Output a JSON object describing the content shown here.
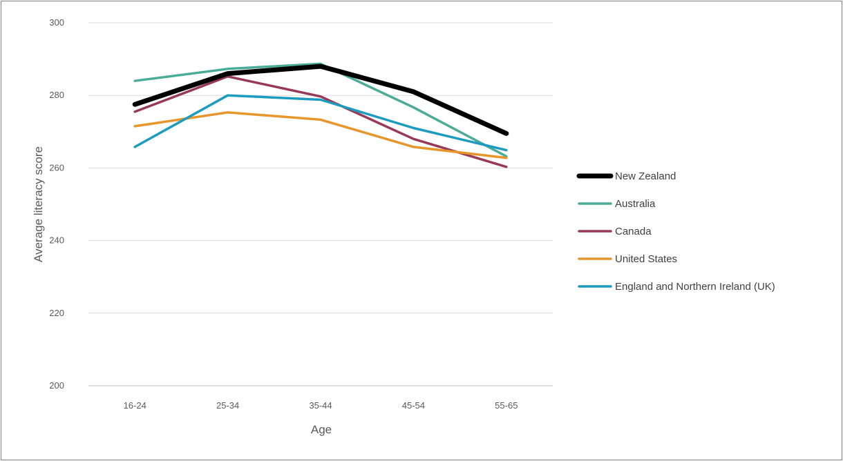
{
  "chart_data": {
    "type": "line",
    "title": "",
    "xlabel": "Age",
    "ylabel": "Average literacy score",
    "categories": [
      "16-24",
      "25-34",
      "35-44",
      "45-54",
      "55-65"
    ],
    "ylim": [
      200,
      300
    ],
    "yticks": [
      200,
      220,
      240,
      260,
      280,
      300
    ],
    "grid": true,
    "legend_position": "right",
    "series": [
      {
        "name": "New Zealand",
        "color": "#000000",
        "emphasis": true,
        "values": [
          277.5,
          286,
          288,
          281,
          269.5
        ]
      },
      {
        "name": "Australia",
        "color": "#4aac98",
        "values": [
          284,
          287.3,
          288.7,
          276.7,
          263.2
        ]
      },
      {
        "name": "Canada",
        "color": "#983a57",
        "values": [
          275.5,
          285.2,
          279.7,
          268,
          260.3
        ]
      },
      {
        "name": "United States",
        "color": "#e7962b",
        "values": [
          271.5,
          275.3,
          273.3,
          265.8,
          262.8
        ]
      },
      {
        "name": "England and Northern Ireland (UK)",
        "color": "#1c9bc1",
        "values": [
          265.8,
          280,
          278.8,
          271,
          264.9
        ]
      }
    ]
  }
}
